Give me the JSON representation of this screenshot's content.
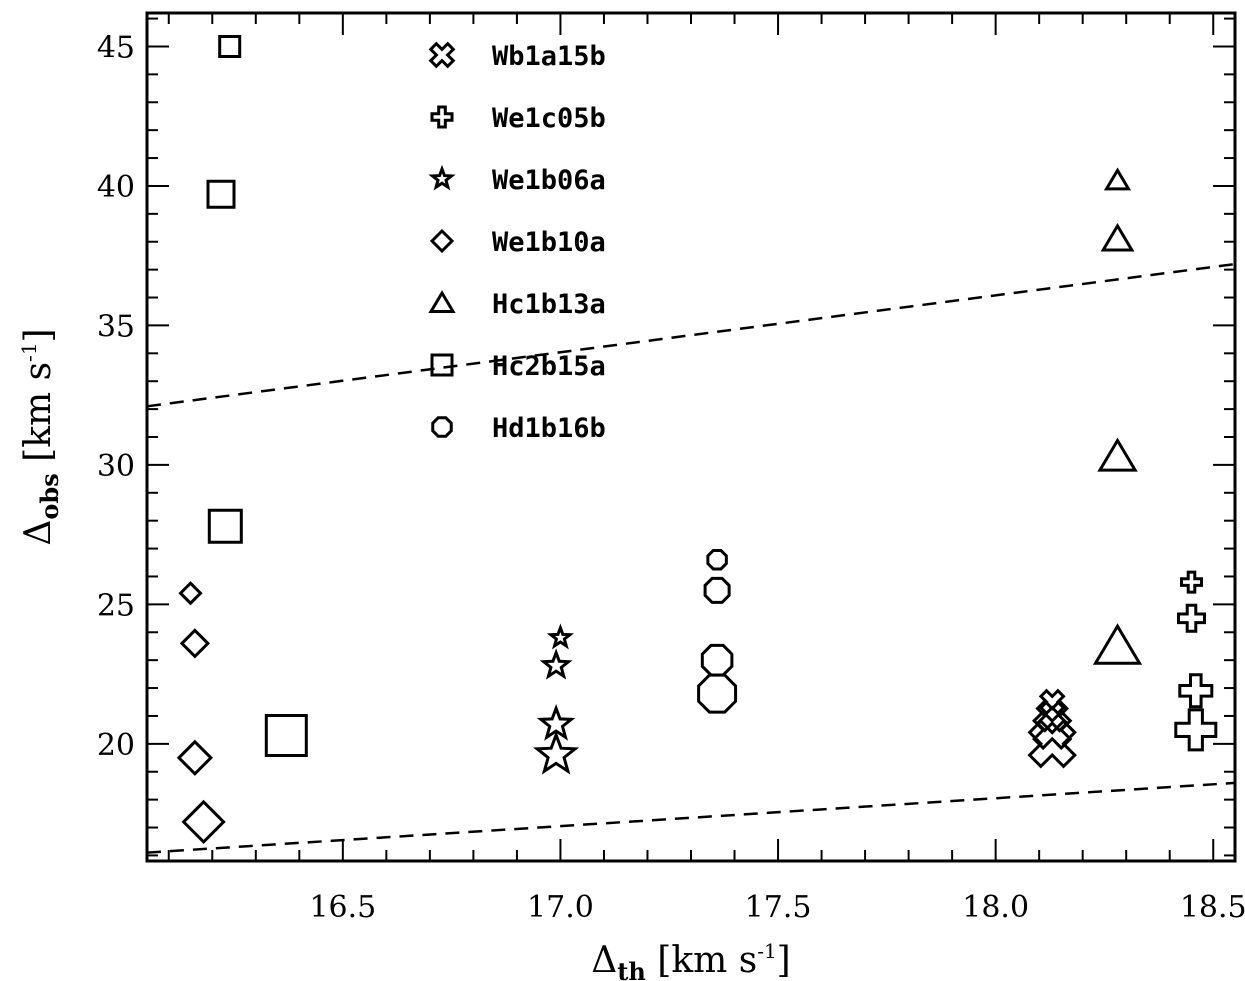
{
  "chart_data": {
    "type": "scatter",
    "xlabel": {
      "main": "Δ",
      "sub": "th",
      "rest": " [km s",
      "sup": "-1",
      "close": "]"
    },
    "ylabel": {
      "main": "Δ",
      "sub": "obs",
      "rest": " [km s",
      "sup": "-1",
      "close": "]"
    },
    "xlim": [
      16.05,
      18.55
    ],
    "ylim": [
      15.8,
      46.2
    ],
    "xticks": [
      16.5,
      17.0,
      17.5,
      18.0,
      18.5
    ],
    "xtick_labels": [
      "16.5",
      "17.0",
      "17.5",
      "18.0",
      "18.5"
    ],
    "yticks": [
      20,
      25,
      30,
      35,
      40,
      45
    ],
    "ytick_labels": [
      "20",
      "25",
      "30",
      "35",
      "40",
      "45"
    ],
    "series": [
      {
        "name": "Wb1a15b",
        "marker": "x",
        "points": [
          [
            18.13,
            21.5
          ],
          [
            18.13,
            21.0
          ],
          [
            18.13,
            20.5
          ],
          [
            18.13,
            20.0
          ]
        ]
      },
      {
        "name": "We1c05b",
        "marker": "plus",
        "points": [
          [
            18.45,
            25.8
          ],
          [
            18.45,
            24.5
          ],
          [
            18.46,
            21.9
          ],
          [
            18.46,
            20.5
          ]
        ]
      },
      {
        "name": "We1b06a",
        "marker": "star",
        "points": [
          [
            17.0,
            23.8
          ],
          [
            16.99,
            22.8
          ],
          [
            16.99,
            20.7
          ],
          [
            16.99,
            19.6
          ]
        ]
      },
      {
        "name": "We1b10a",
        "marker": "diamond",
        "points": [
          [
            16.15,
            25.4
          ],
          [
            16.16,
            23.6
          ],
          [
            16.16,
            19.5
          ],
          [
            16.18,
            17.2
          ]
        ]
      },
      {
        "name": "Hc1b13a",
        "marker": "triangle",
        "points": [
          [
            18.28,
            40.2
          ],
          [
            18.28,
            38.1
          ],
          [
            18.28,
            30.3
          ],
          [
            18.28,
            23.5
          ]
        ]
      },
      {
        "name": "Hc2b15a",
        "marker": "square",
        "points": [
          [
            16.24,
            45.0
          ],
          [
            16.22,
            39.7
          ],
          [
            16.23,
            27.8
          ],
          [
            16.37,
            20.3
          ]
        ]
      },
      {
        "name": "Hd1b16b",
        "marker": "octagon",
        "points": [
          [
            17.36,
            26.6
          ],
          [
            17.36,
            25.5
          ],
          [
            17.36,
            23.0
          ],
          [
            17.36,
            21.8
          ]
        ]
      }
    ],
    "reference_lines": [
      {
        "style": "dashed",
        "points": [
          [
            16.05,
            32.1
          ],
          [
            18.55,
            37.2
          ]
        ]
      },
      {
        "style": "dashed",
        "points": [
          [
            16.05,
            16.1
          ],
          [
            18.55,
            18.6
          ]
        ]
      }
    ],
    "legend": "top-left"
  }
}
